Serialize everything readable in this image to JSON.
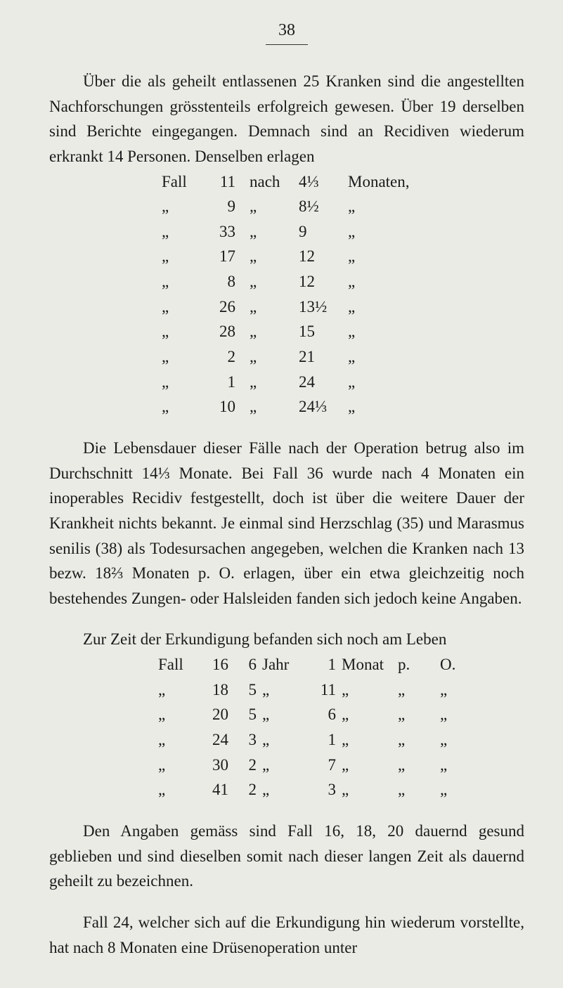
{
  "page_number": "38",
  "p1": "Über die als geheilt entlassenen 25 Kranken sind die angestellten Nachforschungen grösstenteils erfolgreich ge­wesen. Über 19 derselben sind Berichte eingegangen. Demnach sind an Recidiven wiederum erkrankt 14 Personen. Denselben erlagen",
  "table1": [
    {
      "c1": "Fall",
      "c2": "11",
      "c3": "nach",
      "c4": "4⅓",
      "c5": "Monaten,"
    },
    {
      "c1": "„",
      "c2": "9",
      "c3": "„",
      "c4": "8½",
      "c5": "„"
    },
    {
      "c1": "„",
      "c2": "33",
      "c3": "„",
      "c4": "9",
      "c5": "„"
    },
    {
      "c1": "„",
      "c2": "17",
      "c3": "„",
      "c4": "12",
      "c5": "„"
    },
    {
      "c1": "„",
      "c2": "8",
      "c3": "„",
      "c4": "12",
      "c5": "„"
    },
    {
      "c1": "„",
      "c2": "26",
      "c3": "„",
      "c4": "13½",
      "c5": "„"
    },
    {
      "c1": "„",
      "c2": "28",
      "c3": "„",
      "c4": "15",
      "c5": "„"
    },
    {
      "c1": "„",
      "c2": "2",
      "c3": "„",
      "c4": "21",
      "c5": "„"
    },
    {
      "c1": "„",
      "c2": "1",
      "c3": "„",
      "c4": "24",
      "c5": "„"
    },
    {
      "c1": "„",
      "c2": "10",
      "c3": "„",
      "c4": "24⅓",
      "c5": "„"
    }
  ],
  "p2": "Die Lebensdauer dieser Fälle nach der Operation betrug also im Durchschnitt 14⅓ Monate. Bei Fall 36 wurde nach 4 Monaten ein inoperables Recidiv festgestellt, doch ist über die weitere Dauer der Krankheit nichts bekannt. Je einmal sind Herzschlag (35) und Marasmus senilis (38) als Todesursachen angegeben, welchen die Kranken nach 13 bezw. 18⅔ Monaten p. O. erlagen, über ein etwa gleichzeitig noch bestehendes Zungen- oder Halsleiden fanden sich jedoch keine Angaben.",
  "p3": "Zur Zeit der Erkundigung befanden sich noch am Leben",
  "table2": [
    {
      "d1": "Fall",
      "d2": "16",
      "d3": "6",
      "d4": "Jahr",
      "d5": "1",
      "d6": "Monat",
      "d7": "p.",
      "d8": "O.",
      "d9": ""
    },
    {
      "d1": "„",
      "d2": "18",
      "d3": "5",
      "d4": "„",
      "d5": "11",
      "d6": "„",
      "d7": "„",
      "d8": "„",
      "d9": ""
    },
    {
      "d1": "„",
      "d2": "20",
      "d3": "5",
      "d4": "„",
      "d5": "6",
      "d6": "„",
      "d7": "„",
      "d8": "„",
      "d9": ""
    },
    {
      "d1": "„",
      "d2": "24",
      "d3": "3",
      "d4": "„",
      "d5": "1",
      "d6": "„",
      "d7": "„",
      "d8": "„",
      "d9": ""
    },
    {
      "d1": "„",
      "d2": "30",
      "d3": "2",
      "d4": "„",
      "d5": "7",
      "d6": "„",
      "d7": "„",
      "d8": "„",
      "d9": ""
    },
    {
      "d1": "„",
      "d2": "41",
      "d3": "2",
      "d4": "„",
      "d5": "3",
      "d6": "„",
      "d7": "„",
      "d8": "„",
      "d9": ""
    }
  ],
  "p4": "Den Angaben gemäss sind Fall 16, 18, 20 dauernd gesund geblieben und sind dieselben somit nach dieser langen Zeit als dauernd geheilt zu bezeichnen.",
  "p5": "Fall 24, welcher sich auf die Erkundigung hin wiederum vorstellte, hat nach 8 Monaten eine Drüsenoperation unter"
}
